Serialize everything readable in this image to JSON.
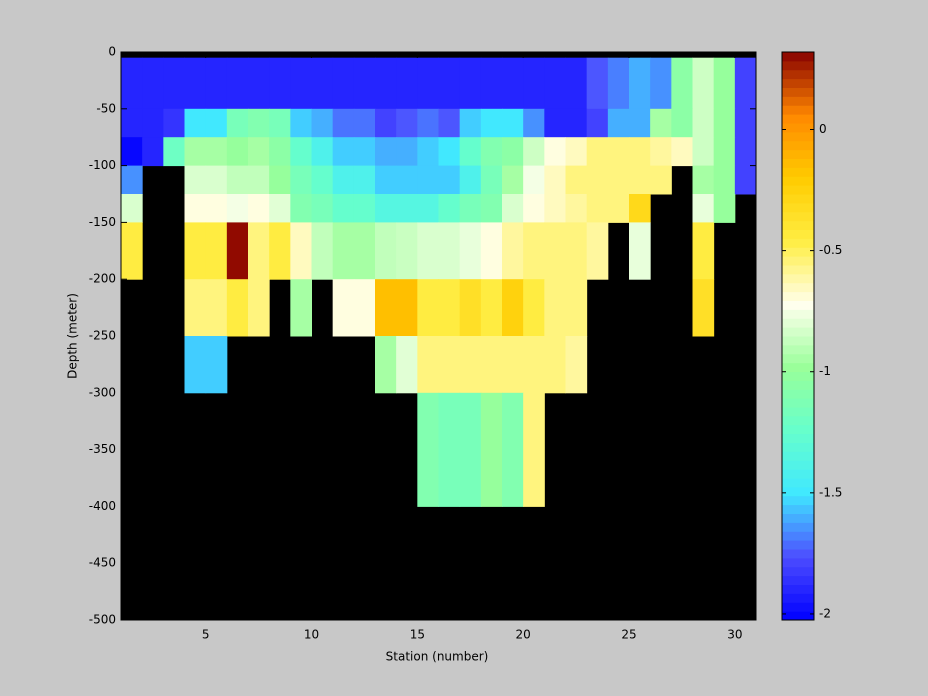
{
  "chart_data": {
    "type": "heatmap",
    "x_label": "Station (number)",
    "y_label": "Depth (meter)",
    "x": [
      1,
      2,
      3,
      4,
      5,
      6,
      7,
      8,
      9,
      10,
      11,
      12,
      13,
      14,
      15,
      16,
      17,
      18,
      19,
      20,
      21,
      22,
      23,
      24,
      25,
      26,
      27,
      28,
      29,
      30,
      31
    ],
    "y": [
      0,
      -5,
      -50,
      -75,
      -100,
      -125,
      -150,
      -200,
      -250,
      -300,
      -400,
      -500
    ],
    "values": [
      [
        null,
        null,
        null,
        null,
        null,
        null,
        null,
        null,
        null,
        null,
        null,
        null,
        null,
        null,
        null,
        null,
        null,
        null,
        null,
        null,
        null,
        null,
        null,
        null,
        null,
        null,
        null,
        null,
        null,
        null
      ],
      [
        -1.9,
        -1.9,
        -1.9,
        -1.9,
        -1.9,
        -1.9,
        -1.9,
        -1.9,
        -1.9,
        -1.9,
        -1.9,
        -1.9,
        -1.9,
        -1.9,
        -1.9,
        -1.9,
        -1.9,
        -1.9,
        -1.9,
        -1.9,
        -1.9,
        -1.9,
        -1.75,
        -1.68,
        -1.6,
        -1.65,
        -1.05,
        -0.85,
        -1.0,
        -1.8
      ],
      [
        -1.9,
        -1.9,
        -1.85,
        -1.5,
        -1.5,
        -1.15,
        -1.1,
        -1.15,
        -1.55,
        -1.6,
        -1.7,
        -1.7,
        -1.8,
        -1.75,
        -1.7,
        -1.75,
        -1.55,
        -1.5,
        -1.5,
        -1.65,
        -1.9,
        -1.9,
        -1.8,
        -1.6,
        -1.6,
        -0.95,
        -1.05,
        -0.85,
        -1.0,
        -1.8
      ],
      [
        -2.0,
        -1.9,
        -1.2,
        -0.95,
        -0.95,
        -1.0,
        -0.95,
        -1.05,
        -1.25,
        -1.4,
        -1.55,
        -1.55,
        -1.6,
        -1.6,
        -1.55,
        -1.5,
        -1.25,
        -1.1,
        -1.05,
        -0.85,
        -0.7,
        -0.65,
        -0.55,
        -0.55,
        -0.55,
        -0.6,
        -0.65,
        -0.85,
        -1.0,
        -1.8
      ],
      [
        -1.65,
        null,
        null,
        -0.82,
        -0.82,
        -0.88,
        -0.88,
        -1.0,
        -1.15,
        -1.25,
        -1.4,
        -1.4,
        -1.55,
        -1.55,
        -1.55,
        -1.55,
        -1.4,
        -1.15,
        -0.95,
        -0.75,
        -0.65,
        -0.55,
        -0.55,
        -0.55,
        -0.55,
        -0.55,
        null,
        -0.95,
        -1.0,
        -1.8
      ],
      [
        -0.82,
        null,
        null,
        -0.7,
        -0.7,
        -0.75,
        -0.7,
        -0.8,
        -1.1,
        -1.15,
        -1.25,
        -1.25,
        -1.35,
        -1.35,
        -1.35,
        -1.25,
        -1.15,
        -1.1,
        -0.82,
        -0.7,
        -0.65,
        -0.6,
        -0.55,
        -0.55,
        -0.3,
        null,
        null,
        -0.78,
        -1.0,
        null
      ],
      [
        -0.45,
        null,
        null,
        -0.45,
        -0.45,
        0.3,
        -0.55,
        -0.45,
        -0.65,
        -0.88,
        -0.95,
        -0.95,
        -0.88,
        -0.86,
        -0.82,
        -0.82,
        -0.78,
        -0.7,
        -0.6,
        -0.55,
        -0.55,
        -0.55,
        -0.6,
        null,
        -0.78,
        null,
        null,
        -0.45,
        null,
        null
      ],
      [
        null,
        null,
        null,
        -0.55,
        -0.55,
        -0.45,
        -0.55,
        null,
        -0.95,
        null,
        -0.7,
        -0.7,
        -0.15,
        -0.15,
        -0.45,
        -0.45,
        -0.35,
        -0.45,
        -0.25,
        -0.45,
        -0.55,
        -0.55,
        null,
        null,
        null,
        null,
        null,
        -0.35,
        null,
        null
      ],
      [
        null,
        null,
        null,
        -1.55,
        -1.55,
        null,
        null,
        null,
        null,
        null,
        null,
        null,
        -0.95,
        -0.8,
        -0.55,
        -0.55,
        -0.55,
        -0.55,
        -0.55,
        -0.55,
        -0.55,
        -0.6,
        null,
        null,
        null,
        null,
        null,
        null,
        null,
        null
      ],
      [
        null,
        null,
        null,
        null,
        null,
        null,
        null,
        null,
        null,
        null,
        null,
        null,
        null,
        null,
        -1.1,
        -1.15,
        -1.15,
        -1.0,
        -1.1,
        -0.55,
        null,
        null,
        null,
        null,
        null,
        null,
        null,
        null,
        null,
        null
      ],
      [
        null,
        null,
        null,
        null,
        null,
        null,
        null,
        null,
        null,
        null,
        null,
        null,
        null,
        null,
        null,
        null,
        null,
        null,
        null,
        null,
        null,
        null,
        null,
        null,
        null,
        null,
        null,
        null,
        null,
        null
      ]
    ],
    "xlim": [
      1,
      31
    ],
    "ylim": [
      -500,
      0
    ],
    "xticks": [
      5,
      10,
      15,
      20,
      25,
      30
    ],
    "yticks": [
      0,
      -50,
      -100,
      -150,
      -200,
      -250,
      -300,
      -350,
      -400,
      -450,
      -500
    ],
    "clim": [
      -2.025,
      0.32
    ],
    "cticks": [
      0,
      -0.5,
      -1,
      -1.5,
      -2
    ],
    "colormap": [
      "#0000ff",
      "#4d4dff",
      "#40e8ff",
      "#66ffcc",
      "#99ff99",
      "#ffffee",
      "#ffee44",
      "#ffcc00",
      "#ff8800",
      "#880000"
    ],
    "nan_color": "#000000"
  }
}
